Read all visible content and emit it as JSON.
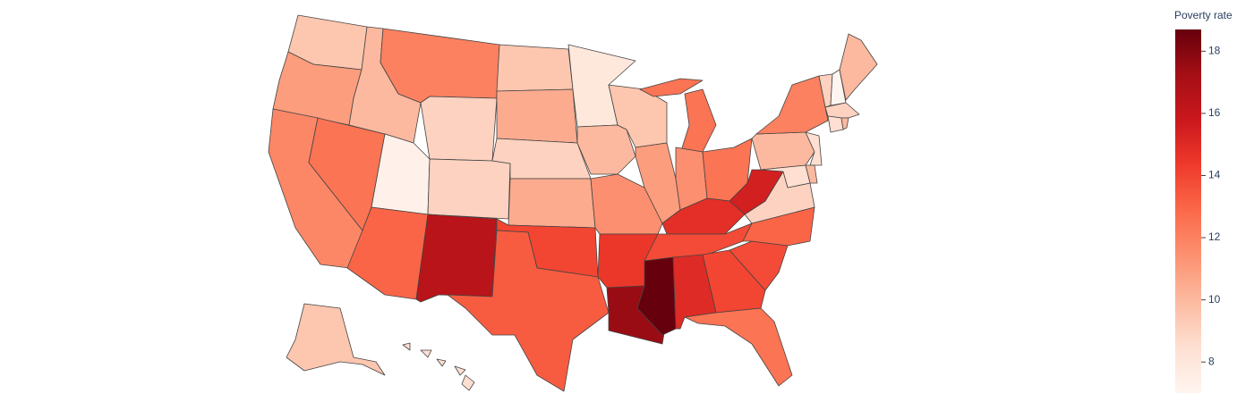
{
  "chart_data": {
    "type": "choropleth",
    "values": [
      9.5,
      11,
      11.8,
      12.5,
      10,
      12,
      9,
      7.3,
      9,
      13,
      16.5,
      9.5,
      10.5,
      9,
      10.5,
      14,
      13.3,
      8,
      10,
      11.5,
      14.5,
      17.5,
      9.5,
      11,
      12.5,
      11.5,
      12.5,
      14.8,
      13.8,
      18.7,
      15,
      14,
      12.5,
      13.8,
      13,
      9,
      15.5,
      10,
      12,
      9,
      7,
      10,
      9,
      8.5,
      10,
      8.5,
      10,
      8.5,
      9.5,
      8.5
    ],
    "colorscale": [
      [
        0,
        "rgb(255,245,240)"
      ],
      [
        0.125,
        "rgb(254,224,210)"
      ],
      [
        0.25,
        "rgb(252,187,161)"
      ],
      [
        0.375,
        "rgb(252,146,114)"
      ],
      [
        0.5,
        "rgb(251,106,74)"
      ],
      [
        0.625,
        "rgb(239,59,44)"
      ],
      [
        0.75,
        "rgb(203,24,29)"
      ],
      [
        0.875,
        "rgb(165,15,21)"
      ],
      [
        1,
        "rgb(103,0,13)"
      ]
    ],
    "zlim": [
      7,
      18.7
    ],
    "colorbar": {
      "title": "Poverty rate",
      "ticks": [
        8,
        10,
        12,
        14,
        16,
        18
      ]
    }
  }
}
